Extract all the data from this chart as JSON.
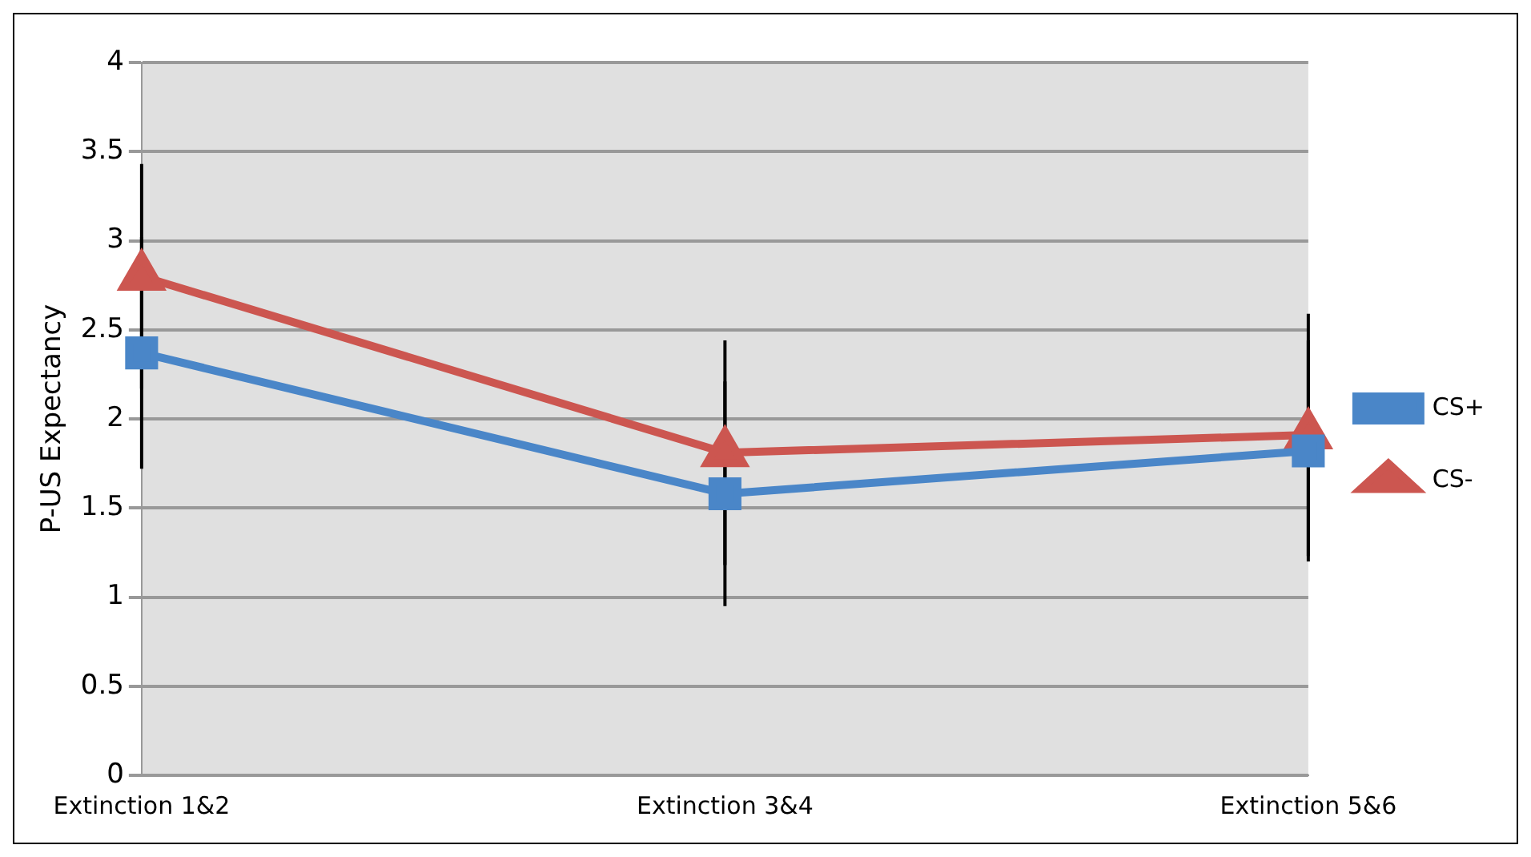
{
  "chart_data": {
    "type": "line",
    "ylabel": "P-US Expectancy",
    "categories": [
      "Extinction 1&2",
      "Extinction 3&4",
      "Extinction 5&6"
    ],
    "series": [
      {
        "name": "CS+",
        "color": "#4a86c8",
        "values": [
          2.37,
          1.58,
          1.82
        ],
        "marker": "square",
        "errors": [
          0.65,
          0.63,
          0.62
        ]
      },
      {
        "name": "CS-",
        "color": "#cc5650",
        "values": [
          2.8,
          1.81,
          1.91
        ],
        "marker": "triangle",
        "errors": [
          0.63,
          0.63,
          0.68
        ]
      }
    ],
    "ylim": [
      0,
      4
    ],
    "yticks": [
      0,
      0.5,
      1,
      1.5,
      2,
      2.5,
      3,
      3.5,
      4
    ],
    "grid": "y",
    "legend": "right",
    "line_style": "solid"
  }
}
